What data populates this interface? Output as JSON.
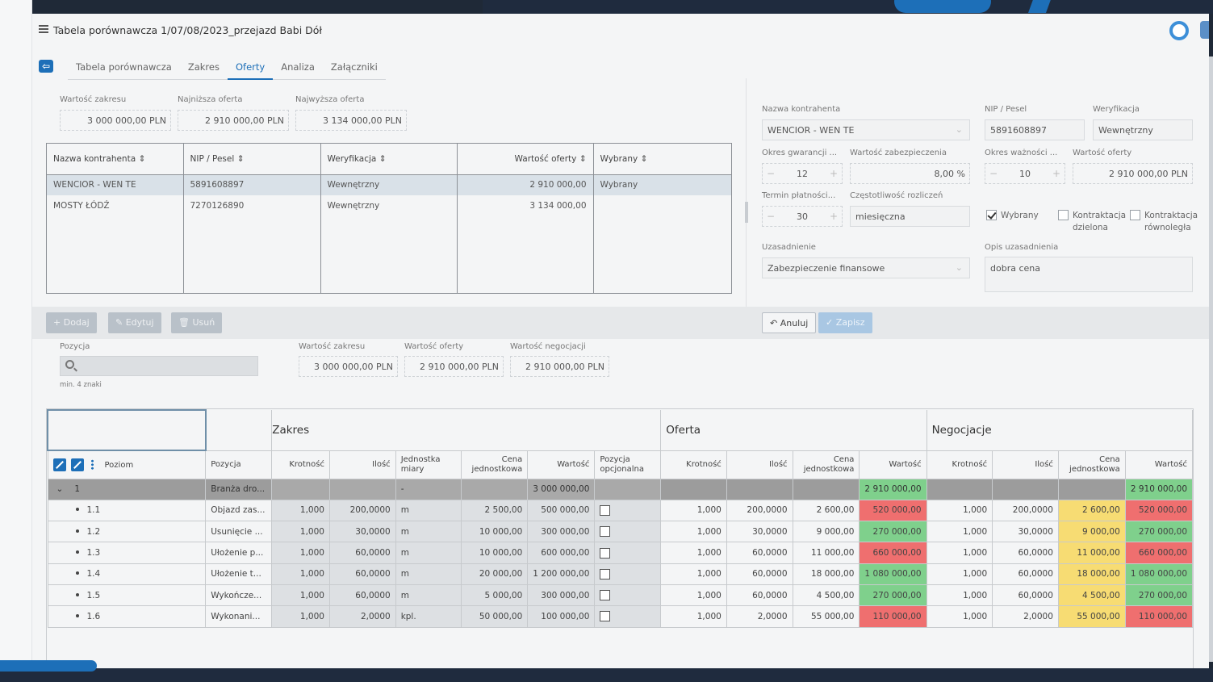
{
  "window": {
    "title": "Tabela porównawcza 1/07/08/2023_przejazd Babi Dół"
  },
  "tabs": [
    "Tabela porównawcza",
    "Zakres",
    "Oferty",
    "Analiza",
    "Załączniki"
  ],
  "active_tab": "Oferty",
  "summary": {
    "scope_value_label": "Wartość zakresu",
    "scope_value": "3 000 000,00 PLN",
    "lowest_label": "Najniższa oferta",
    "lowest": "2 910 000,00 PLN",
    "highest_label": "Najwyższa oferta",
    "highest": "3 134 000,00 PLN"
  },
  "offers_table": {
    "headers": [
      "Nazwa kontrahenta",
      "NIP / Pesel",
      "Weryfikacja",
      "Wartość oferty",
      "Wybrany"
    ],
    "rows": [
      {
        "name": "WENCIOR - WEN TE",
        "nip": "5891608897",
        "verification": "Wewnętrzny",
        "value": "2 910 000,00",
        "selected": "Wybrany"
      },
      {
        "name": "MOSTY ŁÓDŹ",
        "nip": "7270126890",
        "verification": "Wewnętrzny",
        "value": "3 134 000,00",
        "selected": ""
      }
    ]
  },
  "form": {
    "contractor_label": "Nazwa kontrahenta",
    "contractor": "WENCIOR - WEN TE",
    "nip_label": "NIP / Pesel",
    "nip": "5891608897",
    "verification_label": "Weryfikacja",
    "verification": "Wewnętrzny",
    "warranty_label": "Okres gwarancji ...",
    "warranty": "12",
    "security_label": "Wartość zabezpieczenia",
    "security": "8,00 %",
    "validity_label": "Okres ważności ...",
    "validity": "10",
    "offer_value_label": "Wartość oferty",
    "offer_value": "2 910 000,00 PLN",
    "payment_term_label": "Termin płatności...",
    "payment_term": "30",
    "settlement_label": "Częstotliwość rozliczeń",
    "settlement": "miesięczna",
    "chk_selected": "Wybrany",
    "chk_split": "Kontraktacja dzielona",
    "chk_parallel": "Kontraktacja równoległa",
    "justification_label": "Uzasadnienie",
    "justification": "Zabezpieczenie finansowe",
    "justification_desc_label": "Opis uzasadnienia",
    "justification_desc": "dobra cena"
  },
  "toolbar": {
    "add": "Dodaj",
    "edit": "Edytuj",
    "delete": "Usuń",
    "cancel": "Anuluj",
    "save": "Zapisz"
  },
  "position_filter": {
    "label": "Pozycja",
    "placeholder": "",
    "hint": "min. 4 znaki",
    "scope_label": "Wartość zakresu",
    "scope": "3 000 000,00 PLN",
    "offer_label": "Wartość oferty",
    "offer": "2 910 000,00 PLN",
    "negotiation_label": "Wartość negocjacji",
    "negotiation": "2 910 000,00 PLN"
  },
  "details": {
    "groups": [
      "Zakres",
      "Oferta",
      "Negocjacje"
    ],
    "columns": {
      "level": "Poziom",
      "position": "Pozycja",
      "multiplicity": "Krotność",
      "quantity": "Ilość",
      "unit": "Jednostka miary",
      "unit_price": "Cena jednostkowa",
      "value": "Wartość",
      "optional": "Pozycja opcjonalna"
    },
    "group_row": {
      "level": "1",
      "position": "Branża dro...",
      "unit": "-",
      "scope_value": "3 000 000,00",
      "offer_value": "2 910 000,00",
      "neg_value": "2 910 000,00"
    },
    "rows": [
      {
        "level": "1.1",
        "position": "Objazd zas...",
        "k": "1,000",
        "q": "200,0000",
        "unit": "m",
        "price": "2 500,00",
        "value": "500 000,00",
        "ok": "1,000",
        "oq": "200,0000",
        "oprice": "2 600,00",
        "ovalue": "520 000,00",
        "nk": "1,000",
        "nq": "200,0000",
        "nprice": "2 600,00",
        "nvalue": "520 000,00"
      },
      {
        "level": "1.2",
        "position": "Usunięcie ...",
        "k": "1,000",
        "q": "30,0000",
        "unit": "m",
        "price": "10 000,00",
        "value": "300 000,00",
        "ok": "1,000",
        "oq": "30,0000",
        "oprice": "9 000,00",
        "ovalue": "270 000,00",
        "nk": "1,000",
        "nq": "30,0000",
        "nprice": "9 000,00",
        "nvalue": "270 000,00"
      },
      {
        "level": "1.3",
        "position": "Ułożenie p...",
        "k": "1,000",
        "q": "60,0000",
        "unit": "m",
        "price": "10 000,00",
        "value": "600 000,00",
        "ok": "1,000",
        "oq": "60,0000",
        "oprice": "11 000,00",
        "ovalue": "660 000,00",
        "nk": "1,000",
        "nq": "60,0000",
        "nprice": "11 000,00",
        "nvalue": "660 000,00"
      },
      {
        "level": "1.4",
        "position": "Ułożenie t...",
        "k": "1,000",
        "q": "60,0000",
        "unit": "m",
        "price": "20 000,00",
        "value": "1 200 000,00",
        "ok": "1,000",
        "oq": "60,0000",
        "oprice": "18 000,00",
        "ovalue": "1 080 000,00",
        "nk": "1,000",
        "nq": "60,0000",
        "nprice": "18 000,00",
        "nvalue": "1 080 000,00"
      },
      {
        "level": "1.5",
        "position": "Wykończe...",
        "k": "1,000",
        "q": "60,0000",
        "unit": "m",
        "price": "5 000,00",
        "value": "300 000,00",
        "ok": "1,000",
        "oq": "60,0000",
        "oprice": "4 500,00",
        "ovalue": "270 000,00",
        "nk": "1,000",
        "nq": "60,0000",
        "nprice": "4 500,00",
        "nvalue": "270 000,00"
      },
      {
        "level": "1.6",
        "position": "Wykonani...",
        "k": "1,000",
        "q": "2,0000",
        "unit": "kpl.",
        "price": "50 000,00",
        "value": "100 000,00",
        "ok": "1,000",
        "oq": "2,0000",
        "oprice": "55 000,00",
        "ovalue": "110 000,00",
        "nk": "1,000",
        "nq": "2,0000",
        "nprice": "55 000,00",
        "nvalue": "110 000,00"
      }
    ],
    "value_status": [
      "red",
      "green",
      "red",
      "green",
      "green",
      "red"
    ]
  },
  "colors": {
    "accent": "#1d6fb8",
    "green": "#7fd08c",
    "red": "#ef6f6f",
    "yellow": "#f7dc73"
  }
}
